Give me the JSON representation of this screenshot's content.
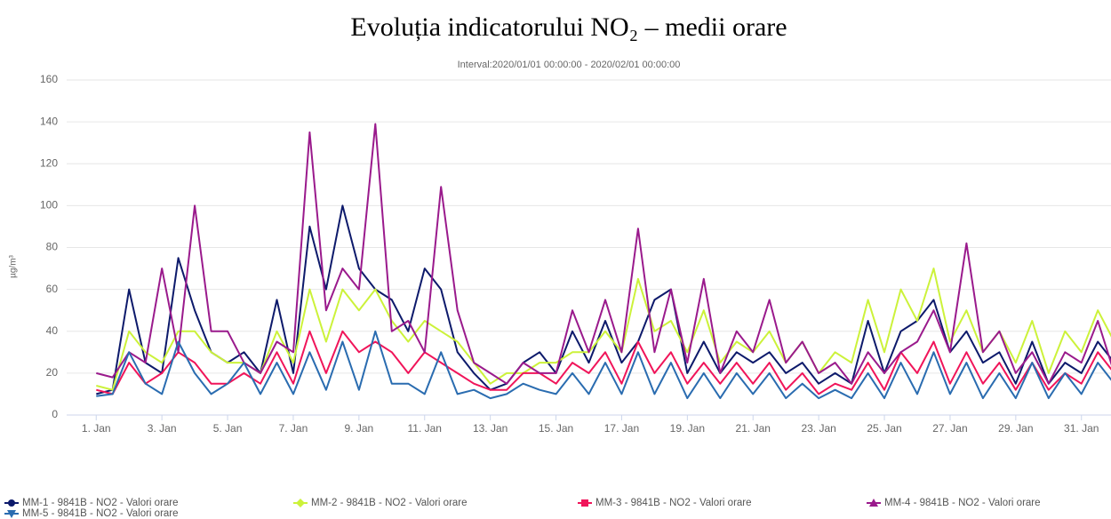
{
  "chart_data": {
    "type": "line",
    "title": "Evoluția indicatorului NO₂ – medii orare",
    "subtitle": "Interval:2020/01/01 00:00:00 - 2020/02/01 00:00:00",
    "y_label": "µg/m³",
    "x": [
      1,
      1.5,
      2,
      2.5,
      3,
      3.5,
      4,
      4.5,
      5,
      5.5,
      6,
      6.5,
      7,
      7.5,
      8,
      8.5,
      9,
      9.5,
      10,
      10.5,
      11,
      11.5,
      12,
      12.5,
      13,
      13.5,
      14,
      14.5,
      15,
      15.5,
      16,
      16.5,
      17,
      17.5,
      18,
      18.5,
      19,
      19.5,
      20,
      20.5,
      21,
      21.5,
      22,
      22.5,
      23,
      23.5,
      24,
      24.5,
      25,
      25.5,
      26,
      26.5,
      27,
      27.5,
      28,
      28.5,
      29,
      29.5,
      30,
      30.5,
      31,
      31.5,
      32
    ],
    "series": [
      {
        "name": "MM-1 - 9841B - NO2 - Valori orare",
        "color": "#0d1a6b",
        "marker": "circle",
        "values": [
          10,
          12,
          60,
          25,
          20,
          75,
          50,
          30,
          25,
          30,
          20,
          55,
          20,
          90,
          60,
          100,
          70,
          60,
          55,
          40,
          70,
          60,
          30,
          20,
          12,
          15,
          25,
          30,
          20,
          40,
          25,
          45,
          25,
          35,
          55,
          60,
          20,
          35,
          20,
          30,
          25,
          30,
          20,
          25,
          15,
          20,
          15,
          45,
          20,
          40,
          45,
          55,
          30,
          40,
          25,
          30,
          15,
          35,
          15,
          25,
          20,
          35,
          25
        ]
      },
      {
        "name": "MM-2 - 9841B - NO2 - Valori orare",
        "color": "#ccf23a",
        "marker": "diamond",
        "values": [
          14,
          12,
          40,
          30,
          25,
          40,
          40,
          30,
          25,
          25,
          20,
          40,
          25,
          60,
          35,
          60,
          50,
          60,
          45,
          35,
          45,
          40,
          35,
          25,
          15,
          20,
          20,
          25,
          25,
          30,
          30,
          40,
          30,
          65,
          40,
          45,
          30,
          50,
          25,
          35,
          30,
          40,
          25,
          35,
          20,
          30,
          25,
          55,
          30,
          60,
          45,
          70,
          35,
          50,
          30,
          40,
          25,
          45,
          20,
          40,
          30,
          50,
          35
        ]
      },
      {
        "name": "MM-3 - 9841B - NO2 - Valori orare",
        "color": "#f0155a",
        "marker": "square",
        "values": [
          12,
          10,
          25,
          15,
          20,
          30,
          25,
          15,
          15,
          20,
          15,
          30,
          15,
          40,
          20,
          40,
          30,
          35,
          30,
          20,
          30,
          25,
          20,
          15,
          12,
          12,
          20,
          20,
          15,
          25,
          20,
          30,
          15,
          35,
          20,
          30,
          15,
          25,
          15,
          25,
          15,
          25,
          12,
          20,
          10,
          15,
          12,
          25,
          12,
          30,
          20,
          35,
          15,
          30,
          15,
          25,
          12,
          25,
          12,
          20,
          15,
          30,
          20
        ]
      },
      {
        "name": "MM-4 - 9841B - NO2 - Valori orare",
        "color": "#9a1a8c",
        "marker": "triangle",
        "values": [
          20,
          18,
          30,
          25,
          70,
          30,
          100,
          40,
          40,
          25,
          20,
          35,
          30,
          135,
          50,
          70,
          60,
          139,
          40,
          45,
          30,
          109,
          50,
          25,
          20,
          15,
          25,
          20,
          20,
          50,
          30,
          55,
          30,
          89,
          30,
          60,
          25,
          65,
          20,
          40,
          30,
          55,
          25,
          35,
          20,
          25,
          15,
          30,
          20,
          30,
          35,
          50,
          30,
          82,
          30,
          40,
          20,
          30,
          15,
          30,
          25,
          45,
          20
        ]
      },
      {
        "name": "MM-5 - 9841B - NO2 - Valori orare",
        "color": "#2a6cb0",
        "marker": "triangle-down",
        "values": [
          9,
          10,
          30,
          15,
          10,
          35,
          20,
          10,
          15,
          25,
          10,
          25,
          10,
          30,
          12,
          35,
          12,
          40,
          15,
          15,
          10,
          30,
          10,
          12,
          8,
          10,
          15,
          12,
          10,
          20,
          10,
          25,
          10,
          30,
          10,
          25,
          8,
          20,
          8,
          20,
          10,
          20,
          8,
          15,
          8,
          12,
          8,
          20,
          8,
          25,
          10,
          30,
          10,
          25,
          8,
          20,
          8,
          25,
          8,
          20,
          10,
          25,
          15
        ]
      }
    ],
    "xlim": [
      0.1,
      31.9
    ],
    "xticks": [
      {
        "value": 1,
        "label": "1. Jan"
      },
      {
        "value": 3,
        "label": "3. Jan"
      },
      {
        "value": 5,
        "label": "5. Jan"
      },
      {
        "value": 7,
        "label": "7. Jan"
      },
      {
        "value": 9,
        "label": "9. Jan"
      },
      {
        "value": 11,
        "label": "11. Jan"
      },
      {
        "value": 13,
        "label": "13. Jan"
      },
      {
        "value": 15,
        "label": "15. Jan"
      },
      {
        "value": 17,
        "label": "17. Jan"
      },
      {
        "value": 19,
        "label": "19. Jan"
      },
      {
        "value": 21,
        "label": "21. Jan"
      },
      {
        "value": 23,
        "label": "23. Jan"
      },
      {
        "value": 25,
        "label": "25. Jan"
      },
      {
        "value": 27,
        "label": "27. Jan"
      },
      {
        "value": 29,
        "label": "29. Jan"
      },
      {
        "value": 31,
        "label": "31. Jan"
      }
    ],
    "ylim": [
      0,
      160
    ],
    "yticks": [
      0,
      20,
      40,
      60,
      80,
      100,
      120,
      140,
      160
    ],
    "grid": true
  }
}
